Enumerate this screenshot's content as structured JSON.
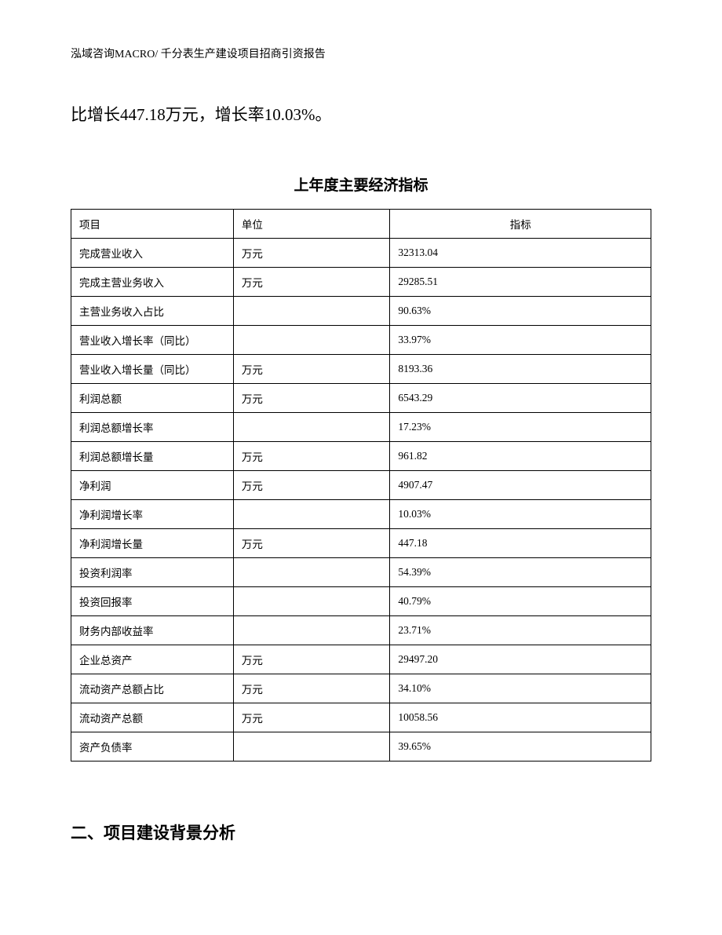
{
  "header": {
    "text": "泓域咨询MACRO/ 千分表生产建设项目招商引资报告"
  },
  "intro": {
    "text": "比增长447.18万元，增长率10.03%。"
  },
  "table": {
    "title": "上年度主要经济指标",
    "columns": [
      {
        "label": "项目"
      },
      {
        "label": "单位"
      },
      {
        "label": "指标"
      }
    ],
    "rows": [
      {
        "item": "完成营业收入",
        "unit": "万元",
        "value": "32313.04"
      },
      {
        "item": "完成主营业务收入",
        "unit": "万元",
        "value": "29285.51"
      },
      {
        "item": "主营业务收入占比",
        "unit": "",
        "value": "90.63%"
      },
      {
        "item": "营业收入增长率（同比）",
        "unit": "",
        "value": "33.97%"
      },
      {
        "item": "营业收入增长量（同比）",
        "unit": "万元",
        "value": "8193.36"
      },
      {
        "item": "利润总额",
        "unit": "万元",
        "value": "6543.29"
      },
      {
        "item": "利润总额增长率",
        "unit": "",
        "value": "17.23%"
      },
      {
        "item": "利润总额增长量",
        "unit": "万元",
        "value": "961.82"
      },
      {
        "item": "净利润",
        "unit": "万元",
        "value": "4907.47"
      },
      {
        "item": "净利润增长率",
        "unit": "",
        "value": "10.03%"
      },
      {
        "item": "净利润增长量",
        "unit": "万元",
        "value": "447.18"
      },
      {
        "item": "投资利润率",
        "unit": "",
        "value": "54.39%"
      },
      {
        "item": "投资回报率",
        "unit": "",
        "value": "40.79%"
      },
      {
        "item": "财务内部收益率",
        "unit": "",
        "value": "23.71%"
      },
      {
        "item": "企业总资产",
        "unit": "万元",
        "value": "29497.20"
      },
      {
        "item": "流动资产总额占比",
        "unit": "万元",
        "value": "34.10%"
      },
      {
        "item": "流动资产总额",
        "unit": "万元",
        "value": "10058.56"
      },
      {
        "item": "资产负债率",
        "unit": "",
        "value": "39.65%"
      }
    ]
  },
  "section": {
    "heading": "二、项目建设背景分析"
  }
}
